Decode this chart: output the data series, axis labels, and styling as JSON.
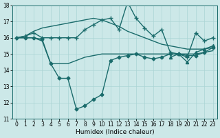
{
  "xlabel": "Humidex (Indice chaleur)",
  "xlim": [
    -0.5,
    23.5
  ],
  "ylim": [
    11,
    18
  ],
  "yticks": [
    11,
    12,
    13,
    14,
    15,
    16,
    17,
    18
  ],
  "xticks": [
    0,
    1,
    2,
    3,
    4,
    5,
    6,
    7,
    8,
    9,
    10,
    11,
    12,
    13,
    14,
    15,
    16,
    17,
    18,
    19,
    20,
    21,
    22,
    23
  ],
  "bg_color": "#cce8e8",
  "line_color": "#1a6b6b",
  "grid_color": "#aad4d4",
  "curves": [
    {
      "x": [
        0,
        1,
        2,
        3,
        4,
        5,
        6,
        7,
        8,
        9,
        10,
        11,
        12,
        13,
        14,
        15,
        16,
        17,
        18,
        19,
        20,
        21,
        22,
        23
      ],
      "y": [
        16.0,
        16.1,
        16.3,
        16.0,
        16.0,
        16.0,
        16.0,
        16.0,
        16.5,
        16.8,
        17.1,
        17.2,
        16.5,
        18.2,
        17.2,
        16.6,
        16.1,
        16.5,
        15.1,
        15.0,
        14.8,
        16.3,
        15.8,
        16.0
      ],
      "marker": "+",
      "markersize": 4,
      "linewidth": 1.0,
      "linestyle": "-"
    },
    {
      "x": [
        0,
        1,
        2,
        3,
        4,
        5,
        6,
        7,
        8,
        9,
        10,
        11,
        12,
        13,
        14,
        15,
        16,
        17,
        18,
        19,
        20,
        21,
        22,
        23
      ],
      "y": [
        16.0,
        16.1,
        16.4,
        16.6,
        16.7,
        16.8,
        16.9,
        17.0,
        17.1,
        17.2,
        17.1,
        16.9,
        16.7,
        16.4,
        16.2,
        16.0,
        15.8,
        15.6,
        15.5,
        15.4,
        15.3,
        15.3,
        15.3,
        15.4
      ],
      "marker": null,
      "markersize": 0,
      "linewidth": 1.0,
      "linestyle": "-"
    },
    {
      "x": [
        0,
        1,
        2,
        3,
        4,
        5,
        6,
        7,
        8,
        9,
        10,
        11,
        12,
        13,
        14,
        15,
        16,
        17,
        18,
        19,
        20,
        21,
        22,
        23
      ],
      "y": [
        16.0,
        16.0,
        16.0,
        15.8,
        14.4,
        14.4,
        14.4,
        14.6,
        14.8,
        14.9,
        15.0,
        15.0,
        15.0,
        15.0,
        15.0,
        15.0,
        15.0,
        15.0,
        15.0,
        15.0,
        15.0,
        15.0,
        15.1,
        15.2
      ],
      "marker": null,
      "markersize": 0,
      "linewidth": 1.0,
      "linestyle": "-"
    },
    {
      "x": [
        0,
        1,
        2,
        3,
        4,
        5,
        6,
        7,
        8,
        9,
        10,
        11,
        12,
        13,
        14,
        15,
        16,
        17,
        18,
        19,
        20,
        21,
        22,
        23
      ],
      "y": [
        16.0,
        16.0,
        16.0,
        15.9,
        14.4,
        13.5,
        13.5,
        11.6,
        11.8,
        12.2,
        12.5,
        14.6,
        14.8,
        14.9,
        15.0,
        14.8,
        14.7,
        14.8,
        15.0,
        15.0,
        14.9,
        14.9,
        15.1,
        15.4
      ],
      "marker": "D",
      "markersize": 2.5,
      "linewidth": 1.0,
      "linestyle": "-"
    },
    {
      "x": [
        18,
        19,
        20,
        21,
        22,
        23
      ],
      "y": [
        14.8,
        15.0,
        14.5,
        15.1,
        15.3,
        15.5
      ],
      "marker": "^",
      "markersize": 3,
      "linewidth": 1.0,
      "linestyle": "-"
    }
  ]
}
